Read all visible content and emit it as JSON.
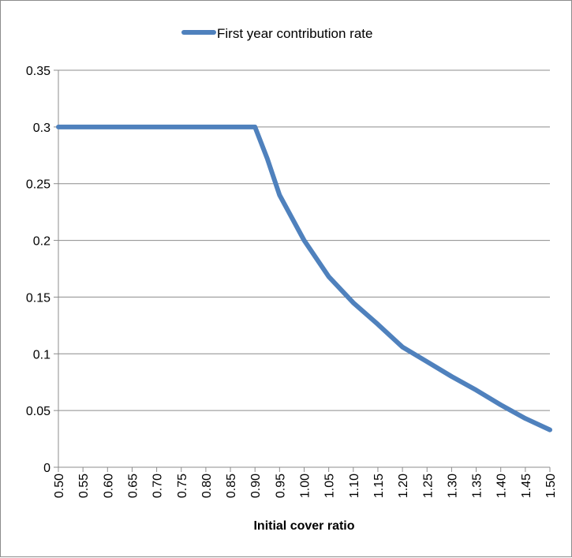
{
  "chart_data": {
    "type": "line",
    "title": "",
    "xlabel": "Initial cover ratio",
    "ylabel": "",
    "categories": [
      "0.50",
      "0.55",
      "0.60",
      "0.65",
      "0.70",
      "0.75",
      "0.80",
      "0.85",
      "0.90",
      "0.95",
      "1.00",
      "1.05",
      "1.10",
      "1.15",
      "1.20",
      "1.25",
      "1.30",
      "1.35",
      "1.40",
      "1.45",
      "1.50"
    ],
    "x": [
      0.5,
      0.55,
      0.6,
      0.65,
      0.7,
      0.75,
      0.8,
      0.85,
      0.9,
      0.925,
      0.95,
      1.0,
      1.05,
      1.1,
      1.15,
      1.2,
      1.25,
      1.3,
      1.35,
      1.4,
      1.45,
      1.5
    ],
    "series": [
      {
        "name": "First year contribution rate",
        "color": "#4f81bd",
        "values": [
          0.3,
          0.3,
          0.3,
          0.3,
          0.3,
          0.3,
          0.3,
          0.3,
          0.3,
          0.272,
          0.24,
          0.2,
          0.168,
          0.145,
          0.126,
          0.106,
          0.093,
          0.08,
          0.068,
          0.055,
          0.043,
          0.033
        ]
      }
    ],
    "ylim": [
      0,
      0.35
    ],
    "yticks": [
      "0",
      "0.05",
      "0.1",
      "0.15",
      "0.2",
      "0.25",
      "0.3",
      "0.35"
    ],
    "grid": true,
    "legend": "top-center"
  }
}
